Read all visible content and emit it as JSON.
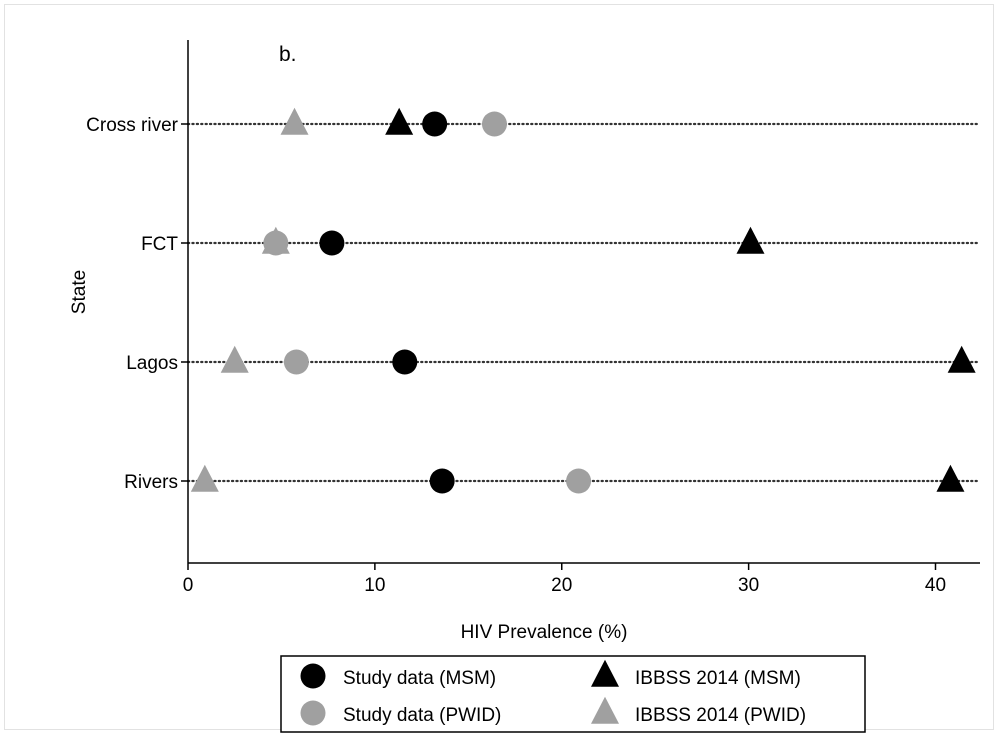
{
  "chart_data": {
    "type": "scatter",
    "panel_label": "b.",
    "xlabel": "HIV Prevalence (%)",
    "ylabel": "State",
    "xlim": [
      0,
      42
    ],
    "xticks": [
      0,
      10,
      20,
      30,
      40
    ],
    "categories": [
      "Cross river",
      "FCT",
      "Lagos",
      "Rivers"
    ],
    "grid": "dotted horizontal lines per state",
    "legend_position": "bottom",
    "series": [
      {
        "name": "Study data (MSM)",
        "marker": "circle",
        "color": "#000000",
        "values": [
          13.2,
          7.7,
          11.6,
          13.6
        ]
      },
      {
        "name": "Study data (PWID)",
        "marker": "circle",
        "color": "#a0a0a0",
        "values": [
          16.4,
          4.7,
          5.8,
          20.9
        ]
      },
      {
        "name": "IBBSS 2014 (MSM)",
        "marker": "triangle",
        "color": "#000000",
        "values": [
          11.3,
          30.1,
          41.4,
          40.8
        ]
      },
      {
        "name": "IBBSS 2014 (PWID)",
        "marker": "triangle",
        "color": "#a0a0a0",
        "values": [
          5.7,
          4.7,
          2.5,
          0.9
        ]
      }
    ]
  }
}
